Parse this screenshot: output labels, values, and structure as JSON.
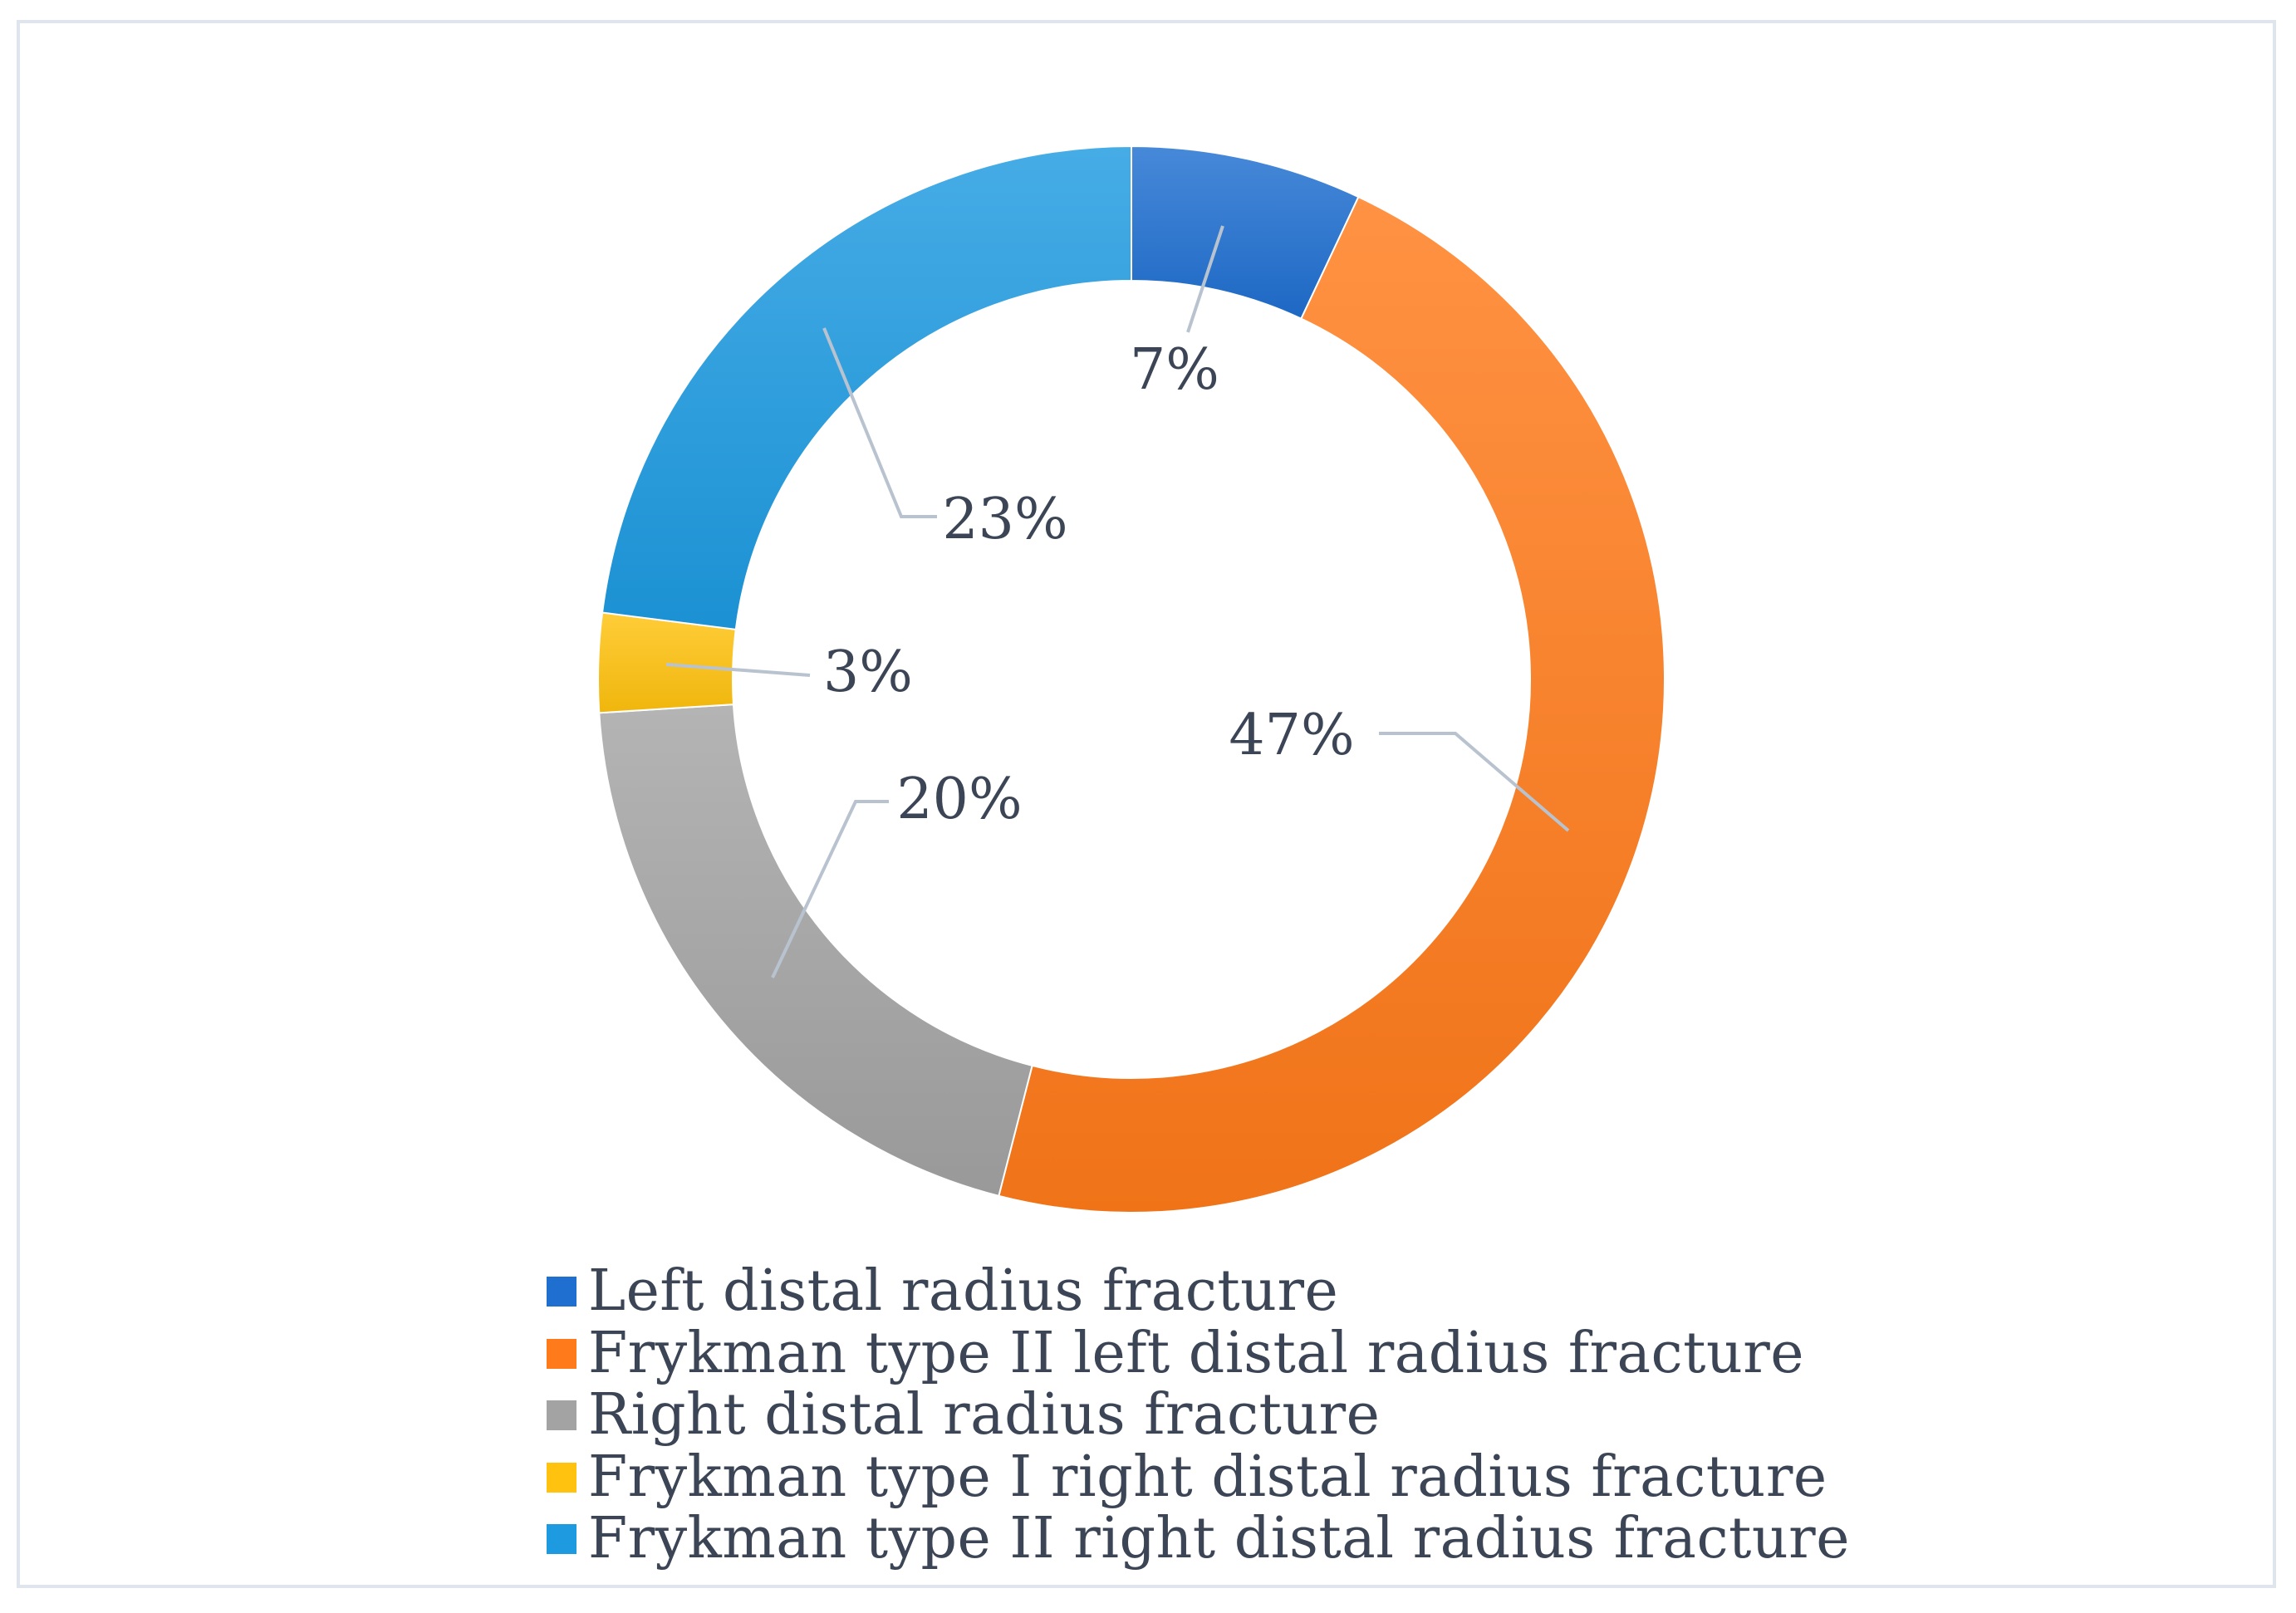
{
  "chart_data": {
    "type": "pie",
    "donut": true,
    "title": "",
    "categories": [
      "Left distal radius fracture",
      "Frykman type II left distal radius fracture",
      "Right distal radius fracture",
      "Frykman type I right distal radius fracture",
      "Frykman type II right distal radius fracture"
    ],
    "values": [
      7,
      47,
      20,
      3,
      23
    ],
    "data_labels": [
      "7%",
      "47%",
      "20%",
      "3%",
      "23%"
    ],
    "colors": [
      "#1f6fd1",
      "#ff7a1a",
      "#a3a3a3",
      "#ffc20e",
      "#1d9ae0"
    ],
    "legend_position": "bottom"
  }
}
